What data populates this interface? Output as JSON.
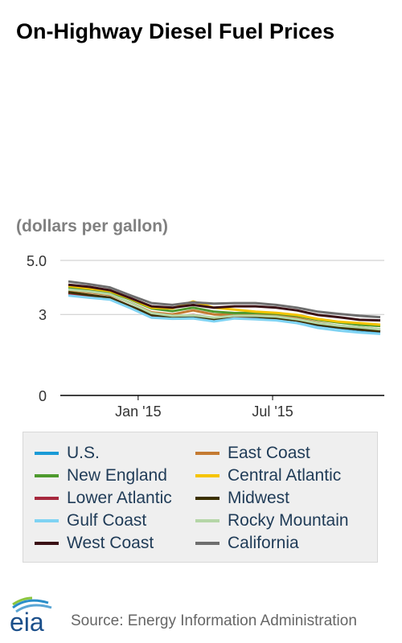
{
  "title": "On-Highway Diesel Fuel Prices",
  "units": "(dollars per gallon)",
  "source": "Source: Energy Information Administration",
  "logo_text": "eia",
  "chart_data": {
    "type": "line",
    "ylim": [
      0,
      5.0
    ],
    "yticks": [
      0,
      3,
      5.0
    ],
    "ytick_labels": [
      "0",
      "3",
      "5.0"
    ],
    "x": [
      "2014-09-29",
      "2014-10-27",
      "2014-11-24",
      "2014-12-22",
      "2015-01-19",
      "2015-02-16",
      "2015-03-16",
      "2015-04-13",
      "2015-05-11",
      "2015-06-08",
      "2015-07-06",
      "2015-08-03",
      "2015-08-31",
      "2015-09-28",
      "2015-10-26",
      "2015-11-23"
    ],
    "xticks": [
      "2015-01-01",
      "2015-07-01"
    ],
    "xtick_labels": [
      "Jan '15",
      "Jul '15"
    ],
    "grid": true,
    "legend_position": "bottom",
    "series": [
      {
        "name": "U.S.",
        "color": "#1a9ad6",
        "values": [
          3.76,
          3.68,
          3.6,
          3.28,
          2.95,
          2.9,
          2.93,
          2.8,
          2.95,
          2.87,
          2.87,
          2.77,
          2.6,
          2.5,
          2.42,
          2.35
        ]
      },
      {
        "name": "East Coast",
        "color": "#c47a32",
        "values": [
          3.9,
          3.82,
          3.72,
          3.43,
          3.08,
          3.0,
          3.15,
          3.0,
          2.98,
          3.0,
          2.98,
          2.86,
          2.7,
          2.58,
          2.52,
          2.45
        ]
      },
      {
        "name": "New England",
        "color": "#4e9a2e",
        "values": [
          4.0,
          3.92,
          3.82,
          3.55,
          3.22,
          3.12,
          3.25,
          3.1,
          3.05,
          3.06,
          3.03,
          2.95,
          2.8,
          2.7,
          2.62,
          2.57
        ]
      },
      {
        "name": "Central Atlantic",
        "color": "#f5c400",
        "values": [
          4.05,
          3.96,
          3.86,
          3.58,
          3.25,
          3.22,
          3.48,
          3.25,
          3.18,
          3.1,
          3.06,
          2.98,
          2.83,
          2.73,
          2.68,
          2.62
        ]
      },
      {
        "name": "Lower Atlantic",
        "color": "#a6283d",
        "values": [
          3.78,
          3.7,
          3.62,
          3.3,
          2.97,
          2.92,
          2.98,
          2.85,
          2.92,
          2.92,
          2.88,
          2.78,
          2.62,
          2.52,
          2.44,
          2.38
        ]
      },
      {
        "name": "Midwest",
        "color": "#3b3000",
        "values": [
          3.82,
          3.72,
          3.62,
          3.3,
          2.98,
          2.92,
          2.95,
          2.82,
          2.95,
          2.92,
          2.85,
          2.78,
          2.62,
          2.52,
          2.44,
          2.38
        ]
      },
      {
        "name": "Gulf Coast",
        "color": "#7fd3f3",
        "values": [
          3.7,
          3.62,
          3.55,
          3.23,
          2.88,
          2.84,
          2.85,
          2.74,
          2.85,
          2.82,
          2.78,
          2.68,
          2.5,
          2.4,
          2.33,
          2.28
        ]
      },
      {
        "name": "Rocky Mountain",
        "color": "#b5d6a7",
        "values": [
          3.92,
          3.85,
          3.75,
          3.42,
          3.05,
          2.95,
          2.97,
          2.88,
          2.95,
          2.95,
          2.92,
          2.82,
          2.68,
          2.58,
          2.52,
          2.45
        ]
      },
      {
        "name": "West Coast",
        "color": "#3a0f14",
        "values": [
          4.1,
          4.02,
          3.9,
          3.6,
          3.3,
          3.25,
          3.35,
          3.25,
          3.3,
          3.3,
          3.25,
          3.15,
          2.98,
          2.9,
          2.8,
          2.78
        ]
      },
      {
        "name": "California",
        "color": "#6e6e6e",
        "values": [
          4.22,
          4.12,
          4.0,
          3.7,
          3.42,
          3.35,
          3.45,
          3.4,
          3.42,
          3.42,
          3.35,
          3.25,
          3.1,
          3.02,
          2.95,
          2.9
        ]
      }
    ]
  }
}
